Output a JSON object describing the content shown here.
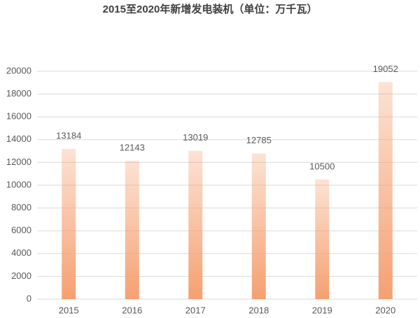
{
  "chart_data": {
    "type": "bar",
    "title": "2015至2020年新增发电装机（单位：万千瓦）",
    "categories": [
      "2015",
      "2016",
      "2017",
      "2018",
      "2019",
      "2020"
    ],
    "values": [
      13184,
      12143,
      13019,
      12785,
      10500,
      19052
    ],
    "color": "#f5a071",
    "ylim": [
      0,
      20000
    ],
    "yticks": [
      0,
      2000,
      4000,
      6000,
      8000,
      10000,
      12000,
      14000,
      16000,
      18000,
      20000
    ],
    "grid": true
  }
}
